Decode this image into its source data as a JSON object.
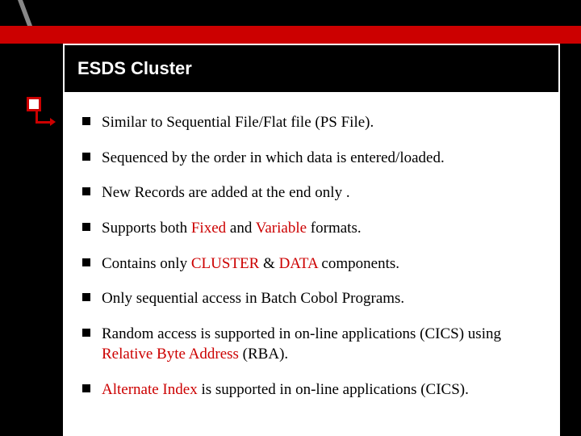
{
  "slide": {
    "title": "ESDS Cluster",
    "background_color": "#000000",
    "accent_color": "#cc0000",
    "content_background": "#ffffff",
    "title_fontsize": 22,
    "body_fontsize": 19,
    "bullets": [
      {
        "segments": [
          {
            "t": "Similar to Sequential File/Flat file (PS File).",
            "hl": false
          }
        ]
      },
      {
        "segments": [
          {
            "t": "Sequenced by the order in which data is entered/loaded.",
            "hl": false
          }
        ]
      },
      {
        "segments": [
          {
            "t": "New Records are added at the end only .",
            "hl": false
          }
        ]
      },
      {
        "segments": [
          {
            "t": "Supports both ",
            "hl": false
          },
          {
            "t": "Fixed",
            "hl": true
          },
          {
            "t": " and ",
            "hl": false
          },
          {
            "t": "Variable",
            "hl": true
          },
          {
            "t": " formats.",
            "hl": false
          }
        ]
      },
      {
        "segments": [
          {
            "t": "Contains only ",
            "hl": false
          },
          {
            "t": "CLUSTER",
            "hl": true
          },
          {
            "t": " & ",
            "hl": false
          },
          {
            "t": "DATA",
            "hl": true
          },
          {
            "t": " components.",
            "hl": false
          }
        ]
      },
      {
        "segments": [
          {
            "t": "Only sequential access in Batch Cobol Programs.",
            "hl": false
          }
        ]
      },
      {
        "segments": [
          {
            "t": "Random access is supported in on-line applications (CICS) using ",
            "hl": false
          },
          {
            "t": "Relative Byte Address",
            "hl": true
          },
          {
            "t": " (RBA).",
            "hl": false
          }
        ]
      },
      {
        "segments": [
          {
            "t": "Alternate Index",
            "hl": true
          },
          {
            "t": " is supported in on-line applications (CICS).",
            "hl": false
          }
        ]
      }
    ]
  }
}
